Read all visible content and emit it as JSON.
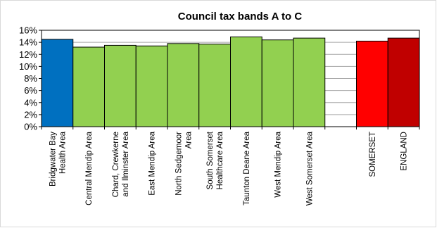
{
  "chart_data": {
    "type": "bar",
    "title": "Council tax bands A to C",
    "xlabel": "",
    "ylabel": "",
    "ylim": [
      0,
      0.16
    ],
    "yticks": [
      "0%",
      "2%",
      "4%",
      "6%",
      "8%",
      "10%",
      "12%",
      "14%",
      "16%"
    ],
    "grid": true,
    "categories": [
      "Bridgwater Bay Health Area",
      "Central Mendip Area",
      "Chard, Crewkerne and Ilminster Area",
      "East Mendip Area",
      "North Sedgemoor Area",
      "South Somerset Healthcare Area",
      "Taunton Deane Area",
      "West Mendip Area",
      "West Somerset Area",
      "",
      "SOMERSET",
      "ENGLAND"
    ],
    "category_lines": [
      [
        "Bridgwater Bay",
        "Health Area"
      ],
      [
        "Central Mendip Area"
      ],
      [
        "Chard, Crewkerne",
        "and Ilminster Area"
      ],
      [
        "East Mendip Area"
      ],
      [
        "North Sedgemoor",
        "Area"
      ],
      [
        "South Somerset",
        "Healthcare Area"
      ],
      [
        "Taunton Deane Area"
      ],
      [
        "West Mendip Area"
      ],
      [
        "West Somerset Area"
      ],
      [],
      [
        "SOMERSET"
      ],
      [
        "ENGLAND"
      ]
    ],
    "values": [
      0.145,
      0.132,
      0.135,
      0.134,
      0.138,
      0.137,
      0.149,
      0.144,
      0.147,
      null,
      0.142,
      0.147
    ],
    "colors": [
      "#0070c0",
      "#92d050",
      "#92d050",
      "#92d050",
      "#92d050",
      "#92d050",
      "#92d050",
      "#92d050",
      "#92d050",
      null,
      "#ff0000",
      "#c00000"
    ]
  }
}
